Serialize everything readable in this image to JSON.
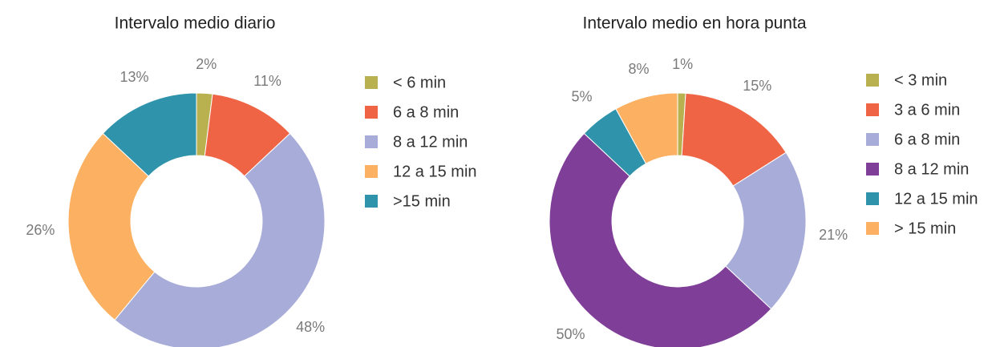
{
  "chart_data": [
    {
      "type": "donut",
      "title": "Intervalo medio diario",
      "categories": [
        "< 6 min",
        "6 a 8 min",
        "8 a 12 min",
        "12 a 15 min",
        ">15 min"
      ],
      "values": [
        2,
        11,
        48,
        26,
        13
      ],
      "value_labels": [
        "2%",
        "11%",
        "48%",
        "26%",
        "13%"
      ],
      "colors": [
        "#b9b04f",
        "#f06446",
        "#a8acd8",
        "#fbb062",
        "#2e93ab"
      ]
    },
    {
      "type": "donut",
      "title": "Intervalo medio en hora punta",
      "categories": [
        "< 3 min",
        "3 a 6 min",
        "6 a 8 min",
        "8 a 12 min",
        "12 a 15 min",
        "> 15 min"
      ],
      "values": [
        1,
        15,
        21,
        50,
        5,
        8
      ],
      "value_labels": [
        "1%",
        "15%",
        "21%",
        "50%",
        "5%",
        "8%"
      ],
      "colors": [
        "#b9b04f",
        "#f06446",
        "#a8acd8",
        "#7f3f98",
        "#2e93ab",
        "#fbb062"
      ]
    }
  ]
}
